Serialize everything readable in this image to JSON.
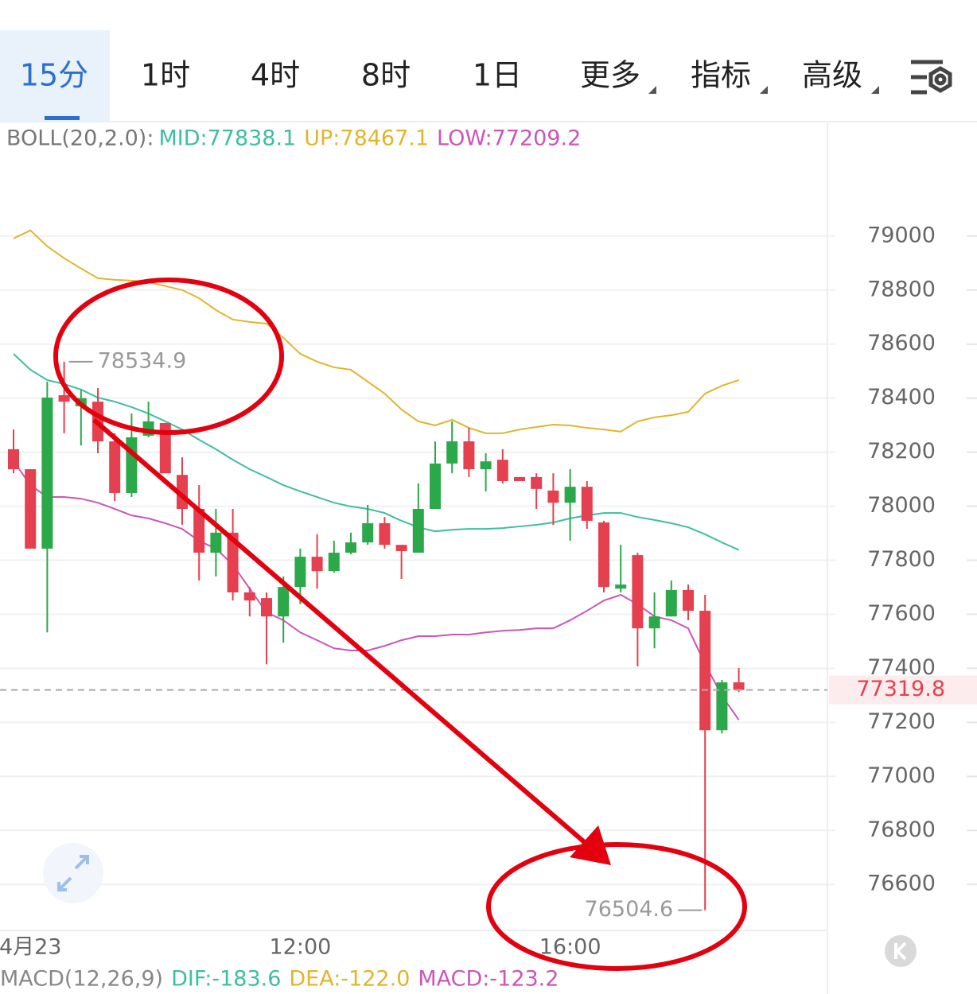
{
  "tabs": [
    "15分",
    "1时",
    "4时",
    "8时",
    "1日",
    "更多",
    "指标",
    "高级"
  ],
  "chart_data": {
    "type": "candlestick",
    "legend_title": "BOLL(20,2.0):",
    "categories": [
      null,
      "4月23",
      null,
      null,
      null,
      null,
      null,
      null,
      null,
      null,
      null,
      null,
      null,
      null,
      null,
      null,
      null,
      "12:00",
      null,
      null,
      null,
      null,
      null,
      null,
      null,
      null,
      null,
      null,
      null,
      null,
      null,
      null,
      null,
      "16:00",
      null,
      null,
      null,
      null,
      null,
      null,
      null,
      null,
      null,
      null
    ],
    "open": [
      78211,
      78137,
      77843,
      78411,
      78370,
      78387,
      78240,
      78049,
      78261,
      78308,
      78116,
      77990,
      77828,
      77902,
      77681,
      77660,
      77592,
      77701,
      77813,
      77760,
      77828,
      77866,
      77937,
      77857,
      77828,
      77990,
      78158,
      78240,
      78137,
      78172,
      78108,
      78108,
      78058,
      78013,
      78072,
      77940,
      77695,
      77819,
      77548,
      77592,
      77690,
      77613,
      77171,
      77348
    ],
    "high": [
      78284,
      78137,
      78461,
      78534.9,
      78430,
      78437,
      78270,
      78343,
      78387,
      78308,
      78181,
      78078,
      77990,
      77990,
      77701,
      77681,
      77740,
      77843,
      77896,
      77872,
      77902,
      78005,
      77960,
      77857,
      78084,
      78240,
      78314,
      78290,
      78196,
      78211,
      78108,
      78122,
      78122,
      78137,
      78093,
      77946,
      77857,
      77828,
      77681,
      77725,
      77710,
      77672,
      77357,
      77401
    ],
    "low": [
      78122,
      77843,
      77533,
      78270,
      78225,
      78196,
      78019,
      78034,
      78255,
      78122,
      77931,
      77725,
      77740,
      77651,
      77592,
      77415,
      77495,
      77637,
      77695,
      77754,
      77822,
      77857,
      77843,
      77731,
      77828,
      77990,
      78122,
      78108,
      78055,
      78084,
      78093,
      77990,
      77931,
      77872,
      77916,
      77681,
      77681,
      77407,
      77474,
      77592,
      77578,
      76504.6,
      77159,
      77312
    ],
    "close": [
      78137,
      77843,
      78402,
      78387,
      78400,
      78240,
      78049,
      78255,
      78314,
      78122,
      77990,
      77828,
      77902,
      77681,
      77651,
      77592,
      77701,
      77813,
      77760,
      77828,
      77866,
      77937,
      77857,
      77834,
      77990,
      78158,
      78240,
      78137,
      78166,
      78093,
      78093,
      78064,
      78013,
      78072,
      77946,
      77701,
      77710,
      77548,
      77592,
      77690,
      77613,
      77171,
      77348,
      77319.8
    ],
    "up_color": "#2aa84a",
    "down_color": "#e5404f",
    "series": [
      {
        "name": "MID:77838.1",
        "color": "#3dbf9f",
        "values": [
          78564,
          78505,
          78467,
          78452,
          78432,
          78402,
          78387,
          78367,
          78343,
          78314,
          78284,
          78246,
          78211,
          78172,
          78137,
          78108,
          78078,
          78055,
          78034,
          78013,
          77999,
          77990,
          77975,
          77946,
          77922,
          77907,
          77913,
          77916,
          77916,
          77919,
          77925,
          77931,
          77940,
          77955,
          77966,
          77975,
          77975,
          77960,
          77949,
          77937,
          77922,
          77896,
          77866,
          77838.1
        ]
      },
      {
        "name": "UP:78467.1",
        "color": "#e2b52a",
        "values": [
          78991,
          79021,
          78962,
          78918,
          78880,
          78844,
          78838,
          78835,
          78829,
          78815,
          78800,
          78770,
          78726,
          78691,
          78682,
          78676,
          78623,
          78564,
          78535,
          78514,
          78505,
          78461,
          78417,
          78358,
          78314,
          78299,
          78320,
          78290,
          78270,
          78270,
          78284,
          78293,
          78302,
          78299,
          78290,
          78284,
          78276,
          78314,
          78329,
          78337,
          78349,
          78417,
          78446,
          78467.1
        ]
      },
      {
        "name": "LOW:77209.2",
        "color": "#cc55bb",
        "values": [
          78167,
          78078,
          78034,
          78034,
          78028,
          78013,
          77990,
          77966,
          77955,
          77937,
          77916,
          77872,
          77843,
          77784,
          77695,
          77607,
          77578,
          77533,
          77504,
          77474,
          77466,
          77466,
          77483,
          77504,
          77519,
          77519,
          77525,
          77525,
          77533,
          77539,
          77542,
          77548,
          77548,
          77578,
          77613,
          77651,
          77672,
          77637,
          77592,
          77578,
          77548,
          77416,
          77298,
          77209.2
        ]
      }
    ],
    "ylim": [
      76430,
      79285
    ],
    "yticks": [
      79000,
      78800,
      78600,
      78400,
      78200,
      78000,
      77800,
      77600,
      77400,
      77200,
      77000,
      76800,
      76600
    ],
    "grid": true
  },
  "macd_header": {
    "title": "MACD(12,26,9)",
    "items": [
      "DIF:-183.6",
      "DEA:-122.0",
      "MACD:-123.2"
    ]
  }
}
